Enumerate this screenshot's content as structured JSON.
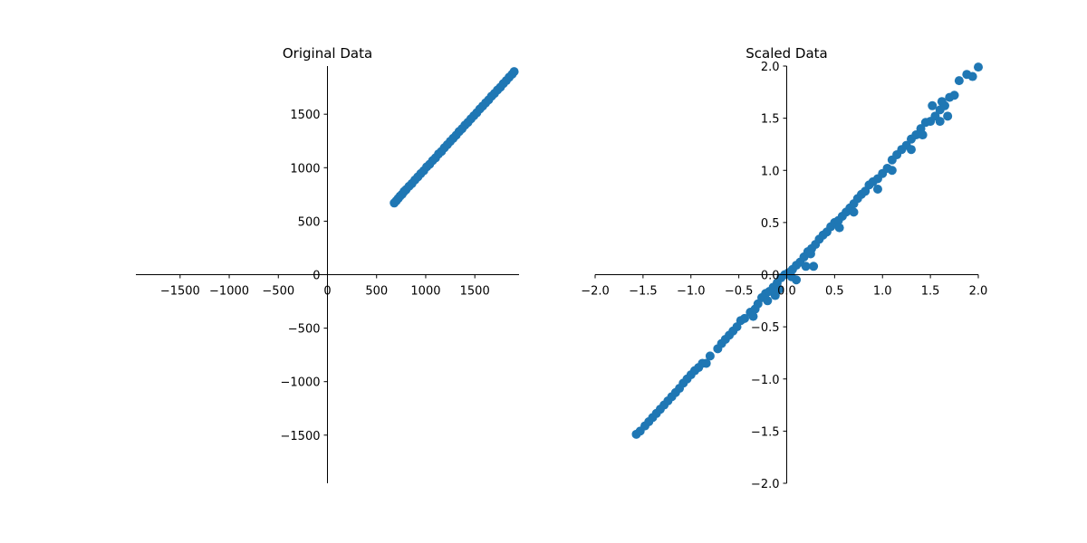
{
  "colors": {
    "marker": "#1f77b4",
    "axis": "#000000",
    "background": "#ffffff"
  },
  "chart_data": [
    {
      "type": "scatter",
      "title": "Original Data",
      "xlabel": "",
      "ylabel": "",
      "xlim": [
        -1950,
        1950
      ],
      "ylim": [
        -1950,
        1950
      ],
      "spines": "centered-at-origin",
      "grid": false,
      "legend": "none",
      "xticks": [
        -1500,
        -1000,
        -500,
        0,
        500,
        1000,
        1500
      ],
      "xtick_labels": [
        "−1500",
        "−1000",
        "−500",
        "0",
        "500",
        "1000",
        "1500"
      ],
      "yticks": [
        -1500,
        -1000,
        -500,
        0,
        500,
        1000,
        1500
      ],
      "ytick_labels": [
        "−1500",
        "−1000",
        "−500",
        "0",
        "500",
        "1000",
        "1500"
      ],
      "series": [
        {
          "points": [
            [
              680,
              670
            ],
            [
              700,
              690
            ],
            [
              720,
              712
            ],
            [
              740,
              735
            ],
            [
              760,
              752
            ],
            [
              780,
              778
            ],
            [
              800,
              795
            ],
            [
              830,
              826
            ],
            [
              860,
              852
            ],
            [
              890,
              885
            ],
            [
              920,
              914
            ],
            [
              950,
              945
            ],
            [
              980,
              972
            ],
            [
              1010,
              1008
            ],
            [
              1040,
              1032
            ],
            [
              1070,
              1066
            ],
            [
              1100,
              1092
            ],
            [
              1130,
              1128
            ],
            [
              1160,
              1152
            ],
            [
              1190,
              1186
            ],
            [
              1220,
              1215
            ],
            [
              1250,
              1246
            ],
            [
              1280,
              1275
            ],
            [
              1310,
              1304
            ],
            [
              1340,
              1338
            ],
            [
              1370,
              1364
            ],
            [
              1400,
              1398
            ],
            [
              1430,
              1424
            ],
            [
              1460,
              1456
            ],
            [
              1490,
              1486
            ],
            [
              1520,
              1514
            ],
            [
              1550,
              1548
            ],
            [
              1580,
              1576
            ],
            [
              1610,
              1606
            ],
            [
              1640,
              1634
            ],
            [
              1670,
              1668
            ],
            [
              1700,
              1694
            ],
            [
              1730,
              1726
            ],
            [
              1760,
              1752
            ],
            [
              1790,
              1786
            ],
            [
              1820,
              1814
            ],
            [
              1850,
              1846
            ],
            [
              1880,
              1874
            ],
            [
              1900,
              1898
            ]
          ]
        }
      ]
    },
    {
      "type": "scatter",
      "title": "Scaled Data",
      "xlabel": "",
      "ylabel": "",
      "xlim": [
        -2.0,
        2.0
      ],
      "ylim": [
        -2.0,
        2.0
      ],
      "spines": "centered-at-origin",
      "grid": false,
      "legend": "none",
      "xticks": [
        -2.0,
        -1.5,
        -1.0,
        -0.5,
        0.0,
        0.5,
        1.0,
        1.5,
        2.0
      ],
      "xtick_labels": [
        "−2.0",
        "−1.5",
        "−1.0",
        "−0.5",
        "0.0",
        "0.5",
        "1.0",
        "1.5",
        "2.0"
      ],
      "yticks": [
        -2.0,
        -1.5,
        -1.0,
        -0.5,
        0.0,
        0.5,
        1.0,
        1.5,
        2.0
      ],
      "ytick_labels": [
        "−2.0",
        "−1.5",
        "−1.0",
        "−0.5",
        "0.0",
        "0.5",
        "1.0",
        "1.5",
        "2.0"
      ],
      "series": [
        {
          "points": [
            [
              -1.57,
              -1.53
            ],
            [
              -1.53,
              -1.5
            ],
            [
              -1.48,
              -1.45
            ],
            [
              -1.44,
              -1.41
            ],
            [
              -1.4,
              -1.37
            ],
            [
              -1.36,
              -1.33
            ],
            [
              -1.32,
              -1.29
            ],
            [
              -1.28,
              -1.25
            ],
            [
              -1.24,
              -1.21
            ],
            [
              -1.2,
              -1.17
            ],
            [
              -1.16,
              -1.13
            ],
            [
              -1.12,
              -1.09
            ],
            [
              -1.08,
              -1.04
            ],
            [
              -1.04,
              -1.0
            ],
            [
              -1.0,
              -0.96
            ],
            [
              -0.96,
              -0.92
            ],
            [
              -0.92,
              -0.89
            ],
            [
              -0.88,
              -0.85
            ],
            [
              -0.84,
              -0.85
            ],
            [
              -0.8,
              -0.78
            ],
            [
              -0.72,
              -0.71
            ],
            [
              -0.68,
              -0.66
            ],
            [
              -0.64,
              -0.62
            ],
            [
              -0.6,
              -0.58
            ],
            [
              -0.56,
              -0.54
            ],
            [
              -0.52,
              -0.5
            ],
            [
              -0.48,
              -0.44
            ],
            [
              -0.44,
              -0.42
            ],
            [
              -0.38,
              -0.36
            ],
            [
              -0.33,
              -0.33
            ],
            [
              -0.3,
              -0.28
            ],
            [
              -0.26,
              -0.22
            ],
            [
              -0.22,
              -0.18
            ],
            [
              -0.18,
              -0.16
            ],
            [
              -0.14,
              -0.12
            ],
            [
              -0.1,
              -0.08
            ],
            [
              -0.06,
              -0.03
            ],
            [
              -0.02,
              0.0
            ],
            [
              0.02,
              0.02
            ],
            [
              0.06,
              0.05
            ],
            [
              0.1,
              0.09
            ],
            [
              0.14,
              0.12
            ],
            [
              0.18,
              0.17
            ],
            [
              0.22,
              0.22
            ],
            [
              0.26,
              0.25
            ],
            [
              0.3,
              0.29
            ],
            [
              0.34,
              0.34
            ],
            [
              0.38,
              0.38
            ],
            [
              0.42,
              0.41
            ],
            [
              0.46,
              0.46
            ],
            [
              0.5,
              0.5
            ],
            [
              0.54,
              0.52
            ],
            [
              0.58,
              0.56
            ],
            [
              0.62,
              0.6
            ],
            [
              0.66,
              0.64
            ],
            [
              0.7,
              0.68
            ],
            [
              0.74,
              0.73
            ],
            [
              0.78,
              0.77
            ],
            [
              0.82,
              0.8
            ],
            [
              0.86,
              0.86
            ],
            [
              0.9,
              0.89
            ],
            [
              0.95,
              0.92
            ],
            [
              1.0,
              0.97
            ],
            [
              1.05,
              1.02
            ],
            [
              1.1,
              1.1
            ],
            [
              1.15,
              1.15
            ],
            [
              1.2,
              1.2
            ],
            [
              1.25,
              1.24
            ],
            [
              1.3,
              1.3
            ],
            [
              1.35,
              1.34
            ],
            [
              1.4,
              1.4
            ],
            [
              1.45,
              1.46
            ],
            [
              1.5,
              1.47
            ],
            [
              1.55,
              1.52
            ],
            [
              1.6,
              1.58
            ],
            [
              1.65,
              1.62
            ],
            [
              1.7,
              1.7
            ],
            [
              1.75,
              1.72
            ],
            [
              1.8,
              1.86
            ],
            [
              1.88,
              1.92
            ],
            [
              1.94,
              1.9
            ],
            [
              2.0,
              1.99
            ],
            [
              0.2,
              0.08
            ],
            [
              0.28,
              0.08
            ],
            [
              0.1,
              -0.05
            ],
            [
              0.25,
              0.2
            ],
            [
              0.55,
              0.45
            ],
            [
              0.7,
              0.6
            ],
            [
              0.95,
              0.82
            ],
            [
              1.1,
              1.0
            ],
            [
              1.3,
              1.2
            ],
            [
              1.42,
              1.34
            ],
            [
              1.6,
              1.47
            ],
            [
              1.68,
              1.52
            ],
            [
              -0.2,
              -0.25
            ],
            [
              -0.35,
              -0.4
            ],
            [
              -0.12,
              -0.2
            ],
            [
              0.05,
              -0.02
            ],
            [
              -0.08,
              -0.14
            ],
            [
              1.52,
              1.62
            ],
            [
              1.62,
              1.66
            ]
          ]
        }
      ]
    }
  ]
}
